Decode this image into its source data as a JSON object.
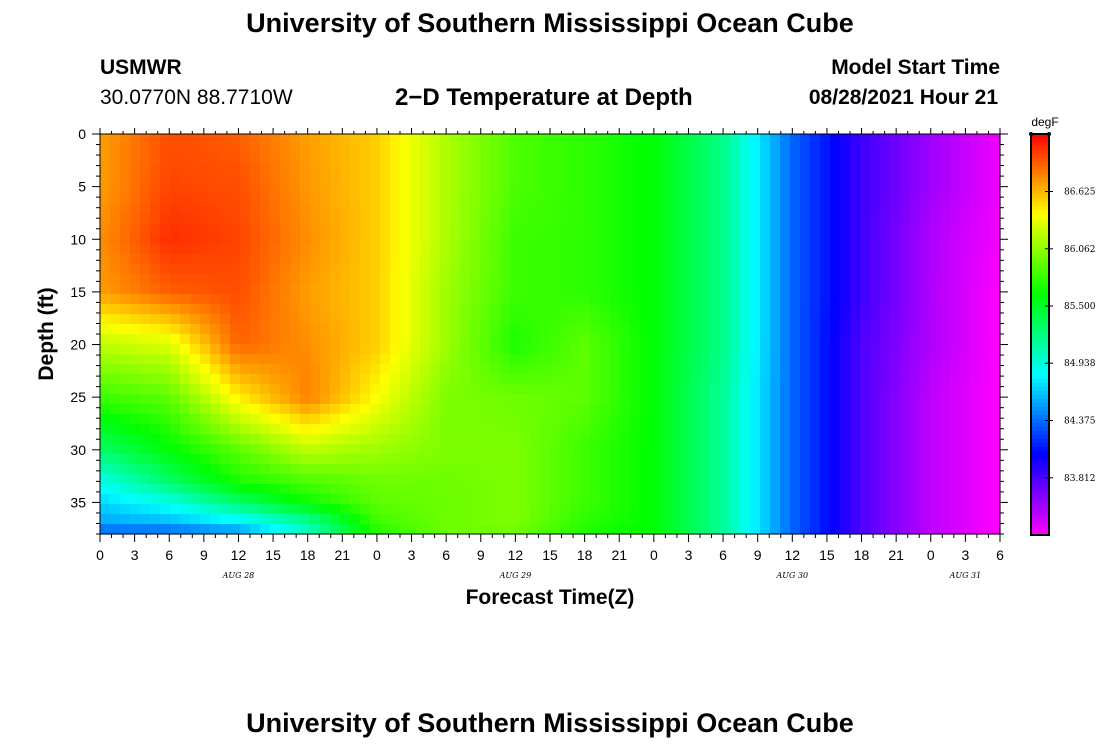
{
  "header": {
    "title": "University of Southern Mississippi Ocean Cube",
    "footer_title": "University of Southern Mississippi Ocean Cube",
    "station": "USMWR",
    "coords": "30.0770N  88.7710W",
    "chart_title": "2−D Temperature at Depth",
    "model_start_label": "Model Start Time",
    "model_start_value": "08/28/2021 Hour 21"
  },
  "chart_data": {
    "type": "heatmap",
    "xlabel": "Forecast Time(Z)",
    "ylabel": "Depth (ft)",
    "y_ticks": [
      "0",
      "5",
      "10",
      "15",
      "20",
      "25",
      "30",
      "35"
    ],
    "y_range": [
      0,
      38
    ],
    "x_ticks": [
      "0",
      "3",
      "6",
      "9",
      "12",
      "15",
      "18",
      "21",
      "0",
      "3",
      "6",
      "9",
      "12",
      "15",
      "18",
      "21",
      "0",
      "3",
      "6",
      "9",
      "12",
      "15",
      "18",
      "21",
      "0",
      "3",
      "6"
    ],
    "x_range_hours": [
      0,
      78
    ],
    "date_labels": [
      {
        "text": "AUG 28",
        "hour": 12
      },
      {
        "text": "AUG 29",
        "hour": 36
      },
      {
        "text": "AUG 30",
        "hour": 60
      },
      {
        "text": "AUG 31",
        "hour": 75
      }
    ],
    "colorbar": {
      "unit": "degF",
      "labels": [
        "86.625",
        "86.062",
        "85.500",
        "84.938",
        "84.375",
        "83.812"
      ],
      "levels": [
        86.625,
        86.062,
        85.5,
        84.938,
        84.375,
        83.812
      ],
      "min": 83.25,
      "max": 87.19
    },
    "grid_hours": [
      0,
      6,
      12,
      18,
      24,
      30,
      36,
      42,
      48,
      54,
      60,
      66,
      72,
      78
    ],
    "grid_depths": [
      0,
      5,
      10,
      15,
      20,
      25,
      30,
      33,
      35,
      37,
      38
    ],
    "temperature": [
      [
        86.7,
        86.95,
        86.9,
        86.7,
        86.55,
        86.15,
        85.85,
        85.75,
        85.6,
        85.2,
        84.35,
        83.85,
        83.55,
        83.3
      ],
      [
        86.7,
        86.98,
        86.95,
        86.72,
        86.55,
        86.15,
        85.85,
        85.75,
        85.6,
        85.2,
        84.35,
        83.85,
        83.55,
        83.3
      ],
      [
        86.75,
        87.05,
        86.98,
        86.75,
        86.55,
        86.15,
        85.8,
        85.75,
        85.6,
        85.2,
        84.35,
        83.85,
        83.5,
        83.28
      ],
      [
        86.7,
        86.9,
        86.95,
        86.7,
        86.55,
        86.1,
        85.8,
        85.75,
        85.6,
        85.2,
        84.35,
        83.85,
        83.5,
        83.25
      ],
      [
        86.2,
        86.3,
        86.88,
        86.75,
        86.55,
        86.1,
        85.7,
        85.9,
        85.6,
        85.2,
        84.35,
        83.8,
        83.5,
        83.25
      ],
      [
        85.8,
        85.9,
        86.45,
        86.8,
        86.4,
        86.0,
        85.95,
        85.9,
        85.6,
        85.15,
        84.35,
        83.8,
        83.45,
        83.25
      ],
      [
        85.3,
        85.6,
        85.9,
        86.2,
        86.1,
        86.0,
        86.0,
        85.8,
        85.6,
        85.15,
        84.35,
        83.8,
        83.45,
        83.25
      ],
      [
        84.9,
        85.3,
        85.7,
        85.85,
        85.95,
        85.95,
        86.0,
        85.8,
        85.6,
        85.15,
        84.35,
        83.8,
        83.45,
        83.25
      ],
      [
        84.7,
        84.9,
        85.3,
        85.65,
        85.9,
        85.95,
        86.0,
        85.8,
        85.6,
        85.15,
        84.35,
        83.8,
        83.45,
        83.25
      ],
      [
        84.55,
        84.6,
        84.75,
        85.1,
        85.8,
        85.95,
        86.0,
        85.75,
        85.6,
        85.15,
        84.35,
        83.8,
        83.45,
        83.25
      ],
      [
        84.3,
        84.3,
        84.45,
        85.0,
        85.7,
        85.95,
        85.95,
        85.7,
        85.6,
        85.15,
        84.35,
        83.8,
        83.45,
        83.25
      ]
    ]
  }
}
